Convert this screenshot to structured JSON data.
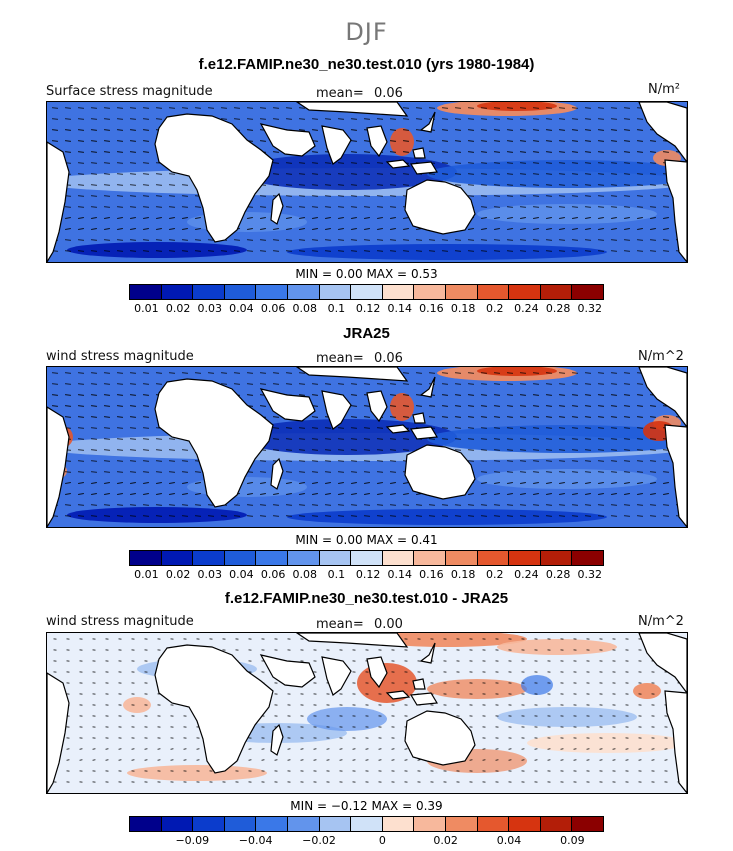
{
  "figure": {
    "title": "DJF"
  },
  "colorbar": {
    "colors": [
      "#00008b",
      "#0019b3",
      "#0b3ccc",
      "#1f5cd9",
      "#3a78e8",
      "#6294ec",
      "#a6c4f2",
      "#d0e2f8",
      "#fde0cf",
      "#f7b89c",
      "#ef8b62",
      "#e5582e",
      "#d63410",
      "#b31e08",
      "#8b0000"
    ]
  },
  "chart_data": [
    {
      "type": "heatmap",
      "title": "f.e12.FAMIP.ne30_ne30.test.010 (yrs 1980-1984)",
      "field_label": "Surface stress magnitude",
      "mean_label": "mean=",
      "mean_value": "0.06",
      "units": "N/m²",
      "min_label": "MIN =",
      "min_value": "0.00",
      "max_label": "MAX =",
      "max_value": "0.53",
      "colorbar_ticks": [
        "0.01",
        "0.02",
        "0.03",
        "0.04",
        "0.06",
        "0.08",
        "0.1",
        "0.12",
        "0.14",
        "0.16",
        "0.18",
        "0.2",
        "0.24",
        "0.28",
        "0.32"
      ],
      "vectors": "wind stress arrows"
    },
    {
      "type": "heatmap",
      "title": "JRA25",
      "field_label": "wind stress magnitude",
      "mean_label": "mean=",
      "mean_value": "0.06",
      "units": "N/m^2",
      "min_label": "MIN =",
      "min_value": "0.00",
      "max_label": "MAX =",
      "max_value": "0.41",
      "colorbar_ticks": [
        "0.01",
        "0.02",
        "0.03",
        "0.04",
        "0.06",
        "0.08",
        "0.1",
        "0.12",
        "0.14",
        "0.16",
        "0.18",
        "0.2",
        "0.24",
        "0.28",
        "0.32"
      ],
      "vectors": "wind stress arrows"
    },
    {
      "type": "heatmap",
      "title": "f.e12.FAMIP.ne30_ne30.test.010 - JRA25",
      "field_label": "wind stress magnitude",
      "mean_label": "mean=",
      "mean_value": "0.00",
      "units": "N/m^2",
      "min_label": "MIN =",
      "min_value": "−0.12",
      "max_label": "MAX =",
      "max_value": "0.39",
      "colorbar_ticks": [
        "−0.09",
        "−0.04",
        "−0.02",
        "0",
        "0.02",
        "0.04",
        "0.09"
      ],
      "vectors": "wind stress difference arrows"
    }
  ]
}
